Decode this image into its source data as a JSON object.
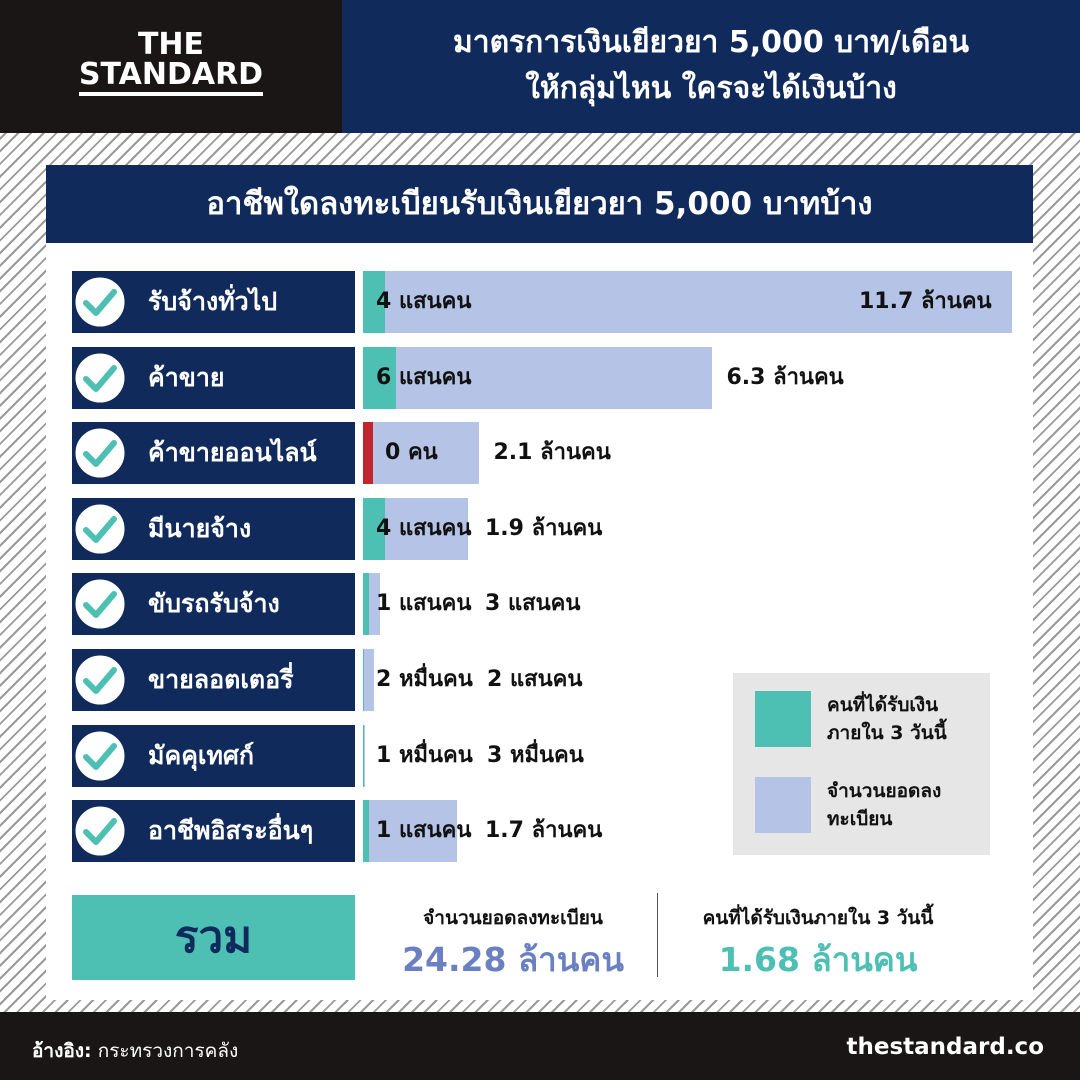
{
  "header": {
    "brand_line1": "THE",
    "brand_line2": "STANDARD",
    "title_line1": "มาตรการเงินเยียวยา 5,000 บาท/เดือน",
    "title_line2": "ให้กลุ่มไหน ใครจะได้เงินบ้าง"
  },
  "chart_data": {
    "type": "bar",
    "title": "อาชีพใดลงทะเบียนรับเงินเยียวยา 5,000 บาทบ้าง",
    "categories": [
      "รับจ้างทั่วไป",
      "ค้าขาย",
      "ค้าขายออนไลน์",
      "มีนายจ้าง",
      "ขับรถรับจ้าง",
      "ขายลอตเตอรี่",
      "มัคคุเทศก์",
      "อาชีพอิสระอื่นๆ"
    ],
    "series": [
      {
        "name": "จำนวนยอดลงทะเบียน",
        "color": "#b4c3e6",
        "values": [
          11700000,
          6300000,
          2100000,
          1900000,
          300000,
          200000,
          30000,
          1700000
        ],
        "value_labels": [
          "11.7 ล้านคน",
          "6.3 ล้านคน",
          "2.1 ล้านคน",
          "1.9 ล้านคน",
          "3 แสนคน",
          "2 แสนคน",
          "3 หมื่นคน",
          "1.7 ล้านคน"
        ]
      },
      {
        "name": "คนที่ได้รับเงินภายใน 3 วันนี้",
        "color": "#4dbfb3",
        "values": [
          400000,
          600000,
          0,
          400000,
          100000,
          20000,
          10000,
          100000
        ],
        "value_labels": [
          "4  แสนคน",
          "6  แสนคน",
          "0 คน",
          "4 แสนคน",
          "1 แสนคน",
          "2 หมื่นคน",
          "1 หมื่นคน",
          "1 แสนคน"
        ]
      }
    ],
    "zero_color": "#c0262d",
    "xlim": [
      0,
      11700000
    ],
    "legend": "bottom-right"
  },
  "total": {
    "label": "รวม",
    "items": [
      {
        "label": "จำนวนยอดลงทะเบียน",
        "value": "24.28 ล้านคน"
      },
      {
        "label": "คนที่ได้รับเงินภายใน 3 วันนี้",
        "value": "1.68 ล้านคน"
      }
    ]
  },
  "footer": {
    "source_label": "อ้างอิง:",
    "source": "กระทรวงการคลัง",
    "site": "thestandard.co"
  }
}
